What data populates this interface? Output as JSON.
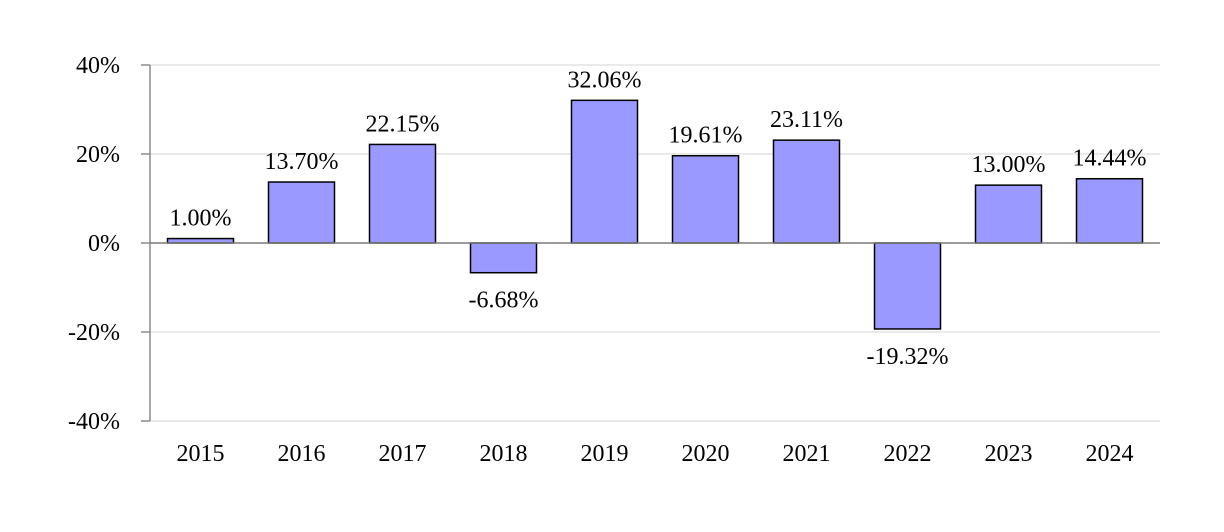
{
  "chart_data": {
    "type": "bar",
    "categories": [
      "2015",
      "2016",
      "2017",
      "2018",
      "2019",
      "2020",
      "2021",
      "2022",
      "2023",
      "2024"
    ],
    "values": [
      1.0,
      13.7,
      22.15,
      -6.68,
      32.06,
      19.61,
      23.11,
      -19.32,
      13.0,
      14.44
    ],
    "data_labels": [
      "1.00%",
      "13.70%",
      "22.15%",
      "-6.68%",
      "32.06%",
      "19.61%",
      "23.11%",
      "-19.32%",
      "13.00%",
      "14.44%"
    ],
    "ylim": [
      -40,
      40
    ],
    "yticks": [
      40,
      20,
      0,
      -20,
      -40
    ],
    "ytick_labels": [
      "40%",
      "20%",
      "0%",
      "-20%",
      "-40%"
    ],
    "grid": true,
    "legend": "none",
    "bar_color": "#9999ff",
    "bar_edge_color": "#000000",
    "title": "",
    "xlabel": "",
    "ylabel": ""
  }
}
